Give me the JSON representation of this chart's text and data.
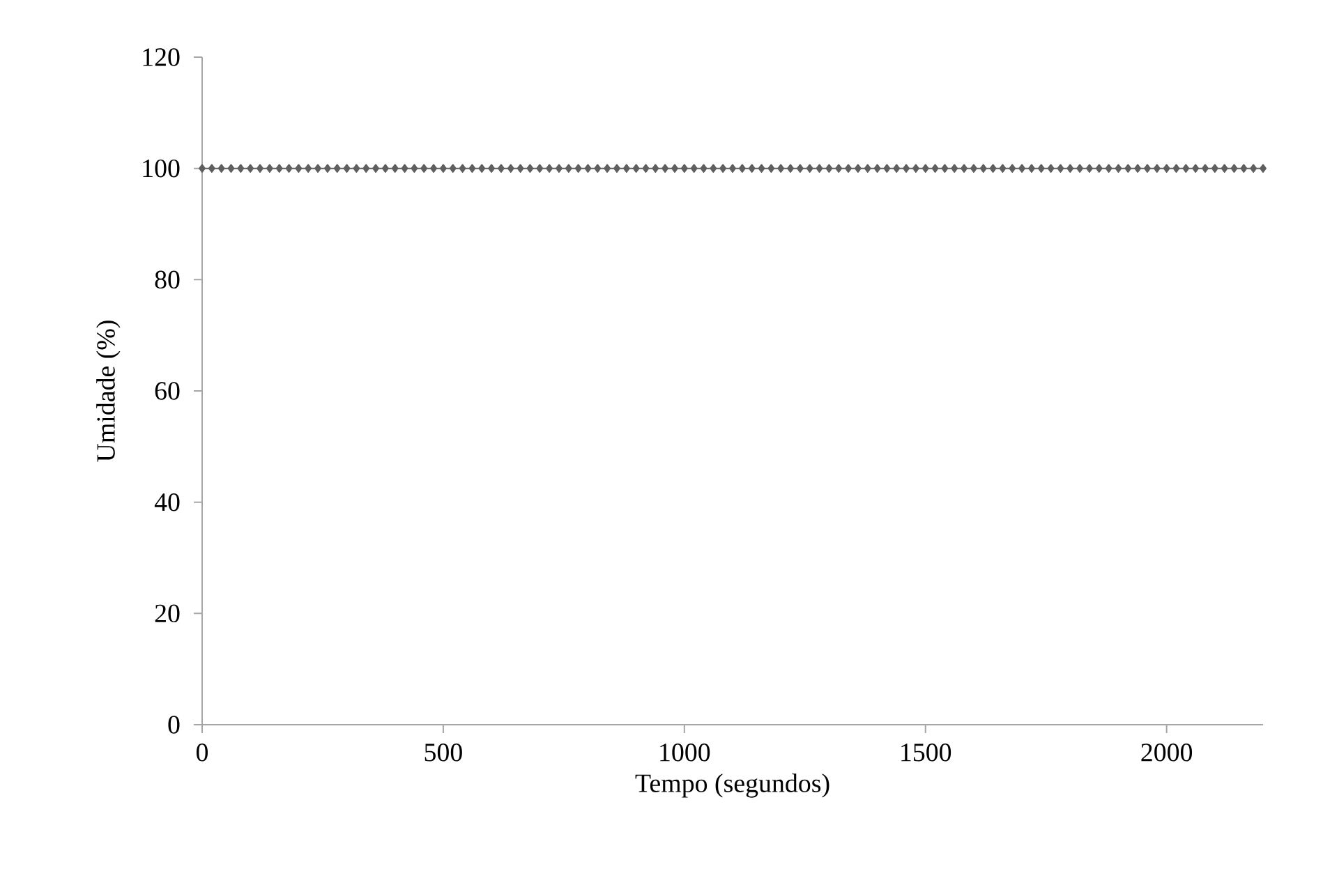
{
  "chart_data": {
    "type": "line",
    "xlabel": "Tempo (segundos)",
    "ylabel": "Umidade (%)",
    "xlim": [
      0,
      2200
    ],
    "xticks": [
      0,
      500,
      1000,
      1500,
      2000
    ],
    "ylim": [
      0,
      120
    ],
    "yticks": [
      0,
      20,
      40,
      60,
      80,
      100,
      120
    ],
    "grid": false,
    "marker": "diamond",
    "series": [
      {
        "color": "#5f5f5f",
        "x": [
          0,
          20,
          40,
          60,
          80,
          100,
          120,
          140,
          160,
          180,
          200,
          220,
          240,
          260,
          280,
          300,
          320,
          340,
          360,
          380,
          400,
          420,
          440,
          460,
          480,
          500,
          520,
          540,
          560,
          580,
          600,
          620,
          640,
          660,
          680,
          700,
          720,
          740,
          760,
          780,
          800,
          820,
          840,
          860,
          880,
          900,
          920,
          940,
          960,
          980,
          1000,
          1020,
          1040,
          1060,
          1080,
          1100,
          1120,
          1140,
          1160,
          1180,
          1200,
          1220,
          1240,
          1260,
          1280,
          1300,
          1320,
          1340,
          1360,
          1380,
          1400,
          1420,
          1440,
          1460,
          1480,
          1500,
          1520,
          1540,
          1560,
          1580,
          1600,
          1620,
          1640,
          1660,
          1680,
          1700,
          1720,
          1740,
          1760,
          1780,
          1800,
          1820,
          1840,
          1860,
          1880,
          1900,
          1920,
          1940,
          1960,
          1980,
          2000,
          2020,
          2040,
          2060,
          2080,
          2100,
          2120,
          2140,
          2160,
          2180,
          2200
        ],
        "values": [
          100,
          100,
          100,
          100,
          100,
          100,
          100,
          100,
          100,
          100,
          100,
          100,
          100,
          100,
          100,
          100,
          100,
          100,
          100,
          100,
          100,
          100,
          100,
          100,
          100,
          100,
          100,
          100,
          100,
          100,
          100,
          100,
          100,
          100,
          100,
          100,
          100,
          100,
          100,
          100,
          100,
          100,
          100,
          100,
          100,
          100,
          100,
          100,
          100,
          100,
          100,
          100,
          100,
          100,
          100,
          100,
          100,
          100,
          100,
          100,
          100,
          100,
          100,
          100,
          100,
          100,
          100,
          100,
          100,
          100,
          100,
          100,
          100,
          100,
          100,
          100,
          100,
          100,
          100,
          100,
          100,
          100,
          100,
          100,
          100,
          100,
          100,
          100,
          100,
          100,
          100,
          100,
          100,
          100,
          100,
          100,
          100,
          100,
          100,
          100,
          100,
          100,
          100,
          100,
          100,
          100,
          100,
          100,
          100,
          100,
          100
        ]
      }
    ]
  }
}
